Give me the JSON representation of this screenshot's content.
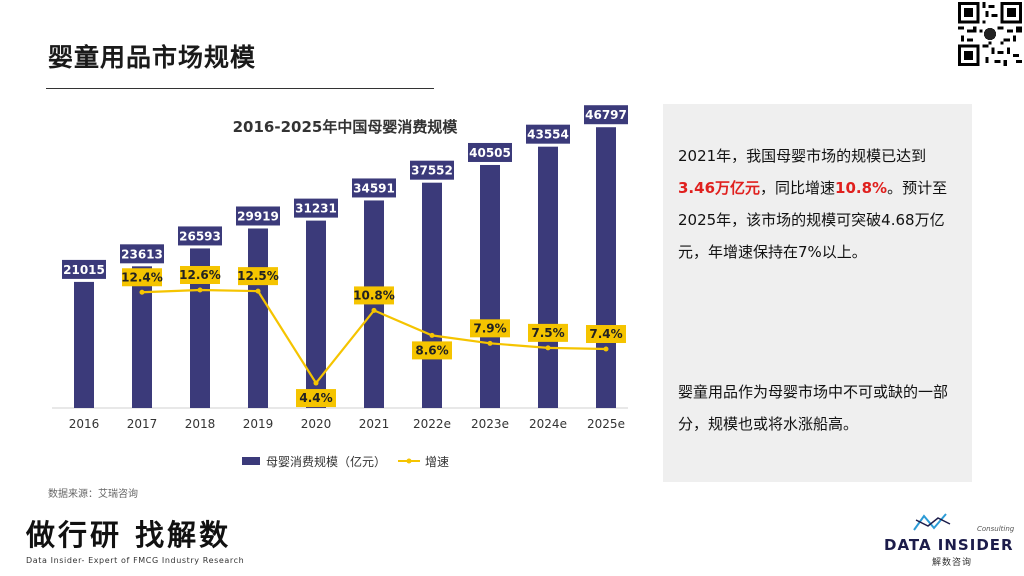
{
  "page": {
    "title": "婴童用品市场规模",
    "source": "数据来源：艾瑞咨询"
  },
  "side": {
    "p1_a": "2021年，我国母婴市场的规模已达到",
    "p1_hl1": "3.46万亿元",
    "p1_b": "，同比增速",
    "p1_hl2": "10.8%",
    "p1_c": "。预计至2025年，该市场的规模可突破4.68万亿元，年增速保持在7%以上。",
    "p2": "婴童用品作为母婴市场中不可或缺的一部分，规模也或将水涨船高。"
  },
  "brand": {
    "cn": "做行研 找解数",
    "en": "Data Insider- Expert of FMCG Industry Research"
  },
  "logo": {
    "consulting": "Consulting",
    "name": "DATA INSIDER",
    "cn": "解数咨询"
  },
  "colors": {
    "bar": "#3b3a7a",
    "line": "#f5c400",
    "highlight": "#e0201e",
    "panel": "#efefef"
  },
  "chart_data": {
    "type": "bar",
    "title": "2016-2025年中国母婴消费规模",
    "categories": [
      "2016",
      "2017",
      "2018",
      "2019",
      "2020",
      "2021",
      "2022e",
      "2023e",
      "2024e",
      "2025e"
    ],
    "series": [
      {
        "name": "母婴消费规模（亿元）",
        "type": "bar",
        "values": [
          21015,
          23613,
          26593,
          29919,
          31231,
          34591,
          37552,
          40505,
          43554,
          46797
        ]
      },
      {
        "name": "增速",
        "type": "line",
        "values": [
          null,
          12.4,
          12.6,
          12.5,
          4.4,
          10.8,
          8.6,
          7.9,
          7.5,
          7.4
        ],
        "labels": [
          "",
          "12.4%",
          "12.6%",
          "12.5%",
          "4.4%",
          "10.8%",
          "8.6%",
          "7.9%",
          "7.5%",
          "7.4%"
        ]
      }
    ],
    "bar_labels": [
      "21015",
      "23613",
      "26593",
      "29919",
      "31231",
      "34591",
      "37552",
      "40505",
      "43554",
      "46797"
    ],
    "ylim": [
      0,
      52000
    ],
    "y2lim": [
      0,
      15
    ],
    "grid": false,
    "legend": "bottom"
  }
}
